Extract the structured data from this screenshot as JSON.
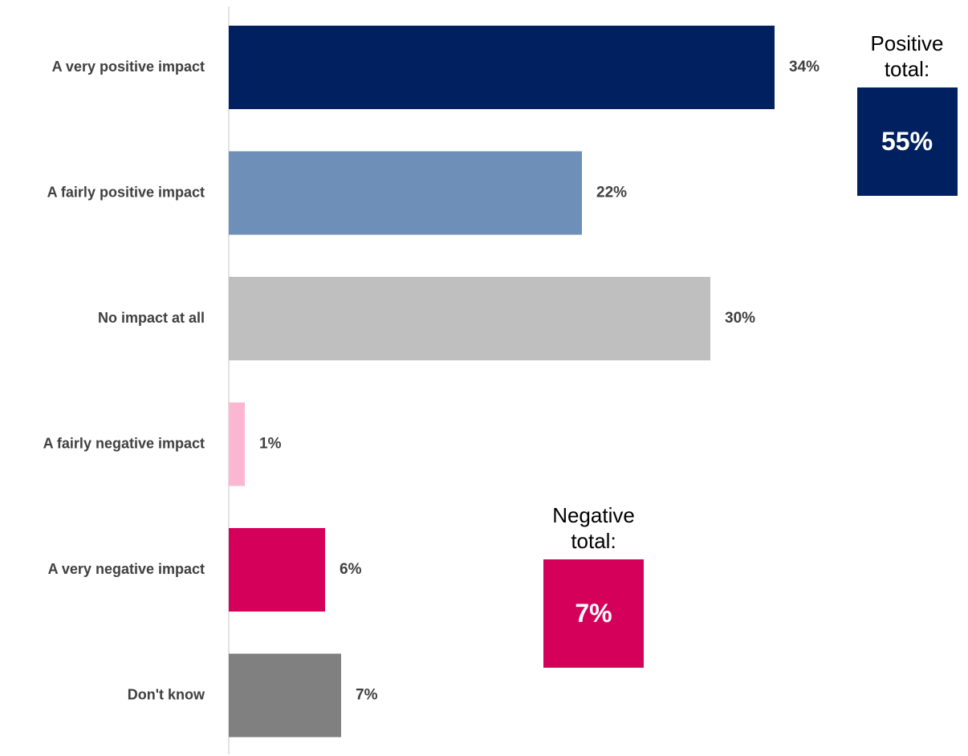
{
  "chart_data": {
    "type": "bar",
    "orientation": "horizontal",
    "categories": [
      "A very positive impact",
      "A fairly positive impact",
      "No impact at all",
      "A fairly negative impact",
      "A very negative impact",
      "Don't know"
    ],
    "values": [
      34,
      22,
      30,
      1,
      6,
      7
    ],
    "value_labels": [
      "34%",
      "22%",
      "30%",
      "1%",
      "6%",
      "7%"
    ],
    "colors": [
      "#002060",
      "#6E90B8",
      "#BFBFBF",
      "#FBB6D2",
      "#D4005A",
      "#808080"
    ],
    "unit": "%",
    "xlim": [
      0,
      40
    ],
    "grid": false,
    "legend": "none",
    "title": "",
    "xlabel": "",
    "ylabel": ""
  },
  "callouts": {
    "positive": {
      "caption": "Positive total:",
      "value": "55%",
      "color": "#002060"
    },
    "negative": {
      "caption": "Negative total:",
      "value": "7%",
      "color": "#D4005A"
    }
  }
}
